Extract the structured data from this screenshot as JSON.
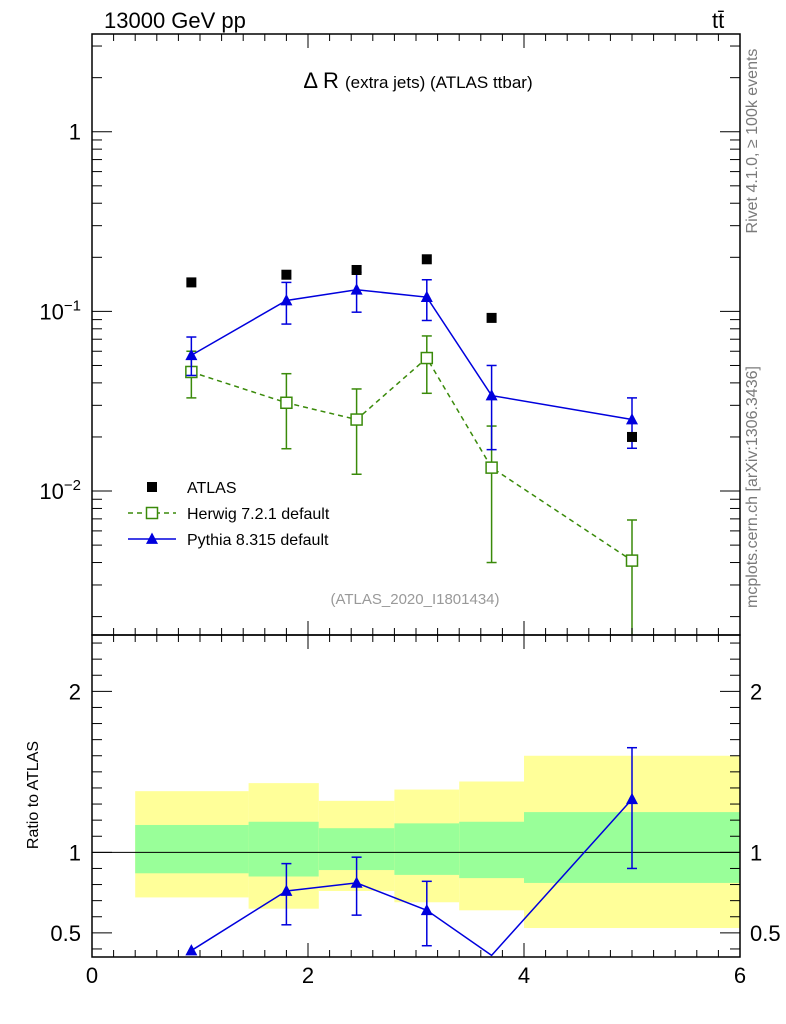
{
  "header": {
    "energy_label": "13000 GeV pp",
    "process_label": "tt̄"
  },
  "side_labels": {
    "rivet": "Rivet 4.1.0, ≥ 100k events",
    "mcplots": "mcplots.cern.ch [arXiv:1306.3436]"
  },
  "colors": {
    "atlas": "#000000",
    "herwig": "#3a8a0a",
    "pythia": "#0000dd",
    "band_inner": "#99ff99",
    "band_outer": "#ffff99",
    "watermark": "#999999"
  },
  "chart_data": [
    {
      "type": "scatter",
      "title_symbol": "Δ R",
      "title_rest": "(extra jets) (ATLAS ttbar)",
      "watermark": "(ATLAS_2020_I1801434)",
      "yscale": "log",
      "xlim": [
        0,
        6
      ],
      "ylim": [
        0.00158,
        3.5
      ],
      "y_ticks": [
        {
          "value": 1,
          "label": "1",
          "sup": ""
        },
        {
          "value": 0.1,
          "label": "10",
          "sup": "−1"
        },
        {
          "value": 0.01,
          "label": "10",
          "sup": "−2"
        }
      ],
      "legend_position": "bottom-left",
      "series": [
        {
          "name": "ATLAS",
          "marker": "square-filled",
          "line": "none",
          "x": [
            0.92,
            1.8,
            2.45,
            3.1,
            3.7,
            5.0
          ],
          "y": [
            0.145,
            0.16,
            0.17,
            0.195,
            0.092,
            0.02
          ]
        },
        {
          "name": "Herwig 7.2.1 default",
          "marker": "square-open",
          "line": "dashed",
          "x": [
            0.92,
            1.8,
            2.45,
            3.1,
            3.7,
            5.0
          ],
          "y": [
            0.046,
            0.031,
            0.025,
            0.055,
            0.0135,
            0.0041
          ],
          "yerr_low": [
            0.033,
            0.0172,
            0.0124,
            0.035,
            0.004,
            0.0012
          ],
          "yerr_high": [
            0.06,
            0.045,
            0.037,
            0.073,
            0.023,
            0.0069
          ]
        },
        {
          "name": "Pythia 8.315 default",
          "marker": "triangle",
          "line": "solid",
          "x": [
            0.92,
            1.8,
            2.45,
            3.1,
            3.7,
            5.0
          ],
          "y": [
            0.057,
            0.115,
            0.132,
            0.12,
            0.034,
            0.025
          ],
          "yerr_low": [
            0.044,
            0.085,
            0.099,
            0.089,
            0.017,
            0.0173
          ],
          "yerr_high": [
            0.072,
            0.145,
            0.165,
            0.15,
            0.05,
            0.033
          ]
        }
      ]
    },
    {
      "type": "scatter",
      "ylabel": "Ratio to ATLAS",
      "xlim": [
        0,
        6
      ],
      "ylim": [
        0.35,
        2.35
      ],
      "x_ticks": [
        0,
        2,
        4,
        6
      ],
      "y_ticks": [
        0.5,
        1,
        2
      ],
      "reference_line": 1,
      "bands": [
        {
          "x0": 0.4,
          "x1": 1.45,
          "inner": [
            0.87,
            1.17
          ],
          "outer": [
            0.72,
            1.38
          ]
        },
        {
          "x0": 1.45,
          "x1": 2.1,
          "inner": [
            0.85,
            1.19
          ],
          "outer": [
            0.65,
            1.43
          ]
        },
        {
          "x0": 2.1,
          "x1": 2.8,
          "inner": [
            0.89,
            1.15
          ],
          "outer": [
            0.76,
            1.32
          ]
        },
        {
          "x0": 2.8,
          "x1": 3.4,
          "inner": [
            0.86,
            1.18
          ],
          "outer": [
            0.69,
            1.39
          ]
        },
        {
          "x0": 3.4,
          "x1": 4.0,
          "inner": [
            0.84,
            1.19
          ],
          "outer": [
            0.64,
            1.44
          ]
        },
        {
          "x0": 4.0,
          "x1": 6.0,
          "inner": [
            0.81,
            1.25
          ],
          "outer": [
            0.53,
            1.6
          ]
        }
      ],
      "series": [
        {
          "name": "Pythia 8.315 default",
          "x": [
            0.92,
            1.8,
            2.45,
            3.1,
            3.7,
            5.0
          ],
          "y": [
            0.39,
            0.76,
            0.81,
            0.64,
            0.36,
            1.33
          ],
          "yerr_low": [
            null,
            0.55,
            0.61,
            0.42,
            null,
            0.9
          ],
          "yerr_high": [
            null,
            0.93,
            0.97,
            0.82,
            null,
            1.65
          ]
        }
      ]
    }
  ]
}
